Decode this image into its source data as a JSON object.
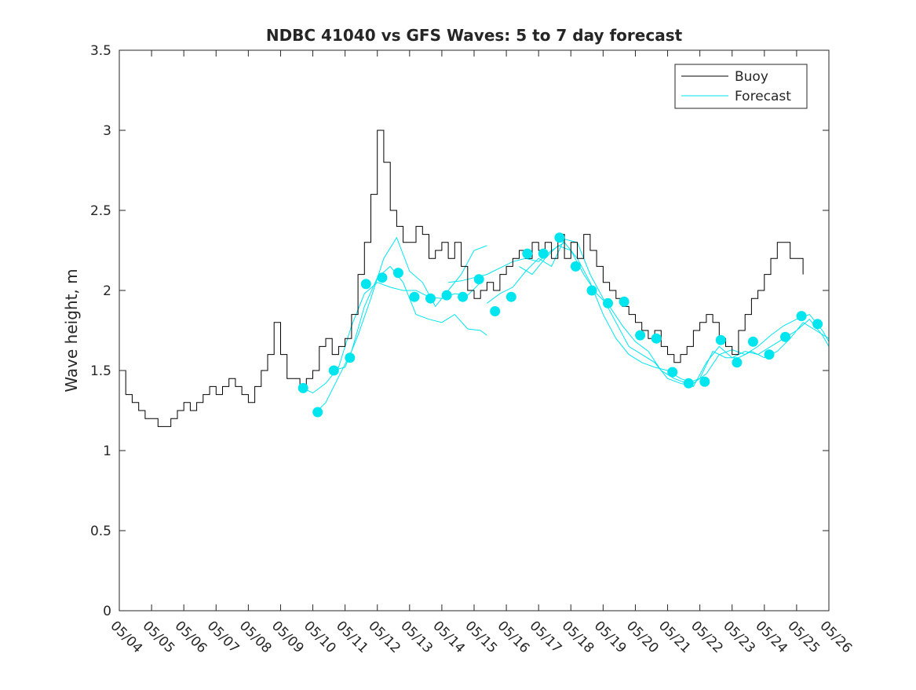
{
  "chart_data": {
    "type": "line",
    "title": "NDBC 41040 vs GFS Waves: 5 to 7 day forecast",
    "xlabel": "",
    "ylabel": "Wave height, m",
    "x_tick_labels": [
      "05/04",
      "05/05",
      "05/06",
      "05/07",
      "05/08",
      "05/09",
      "05/10",
      "05/11",
      "05/12",
      "05/13",
      "05/14",
      "05/15",
      "05/16",
      "05/17",
      "05/18",
      "05/19",
      "05/20",
      "05/21",
      "05/22",
      "05/23",
      "05/24",
      "05/25",
      "05/26"
    ],
    "xlim_days": [
      4,
      26
    ],
    "ylim": [
      0,
      3.5
    ],
    "y_ticks": [
      "0",
      "0.5",
      "1",
      "1.5",
      "2",
      "2.5",
      "3",
      "3.5"
    ],
    "grid": false,
    "legend": {
      "placement": "top-right",
      "entries": [
        "Buoy",
        "Forecast"
      ]
    },
    "colors": {
      "buoy": "#000000",
      "forecast": "#00e5ee",
      "markers": "#00e5ee",
      "axes": "#262626"
    },
    "series": [
      {
        "name": "Buoy",
        "style": "line",
        "x": [
          4.0,
          4.2,
          4.4,
          4.6,
          4.8,
          5.0,
          5.2,
          5.4,
          5.6,
          5.8,
          6.0,
          6.2,
          6.4,
          6.6,
          6.8,
          7.0,
          7.2,
          7.4,
          7.6,
          7.8,
          8.0,
          8.2,
          8.4,
          8.6,
          8.8,
          9.0,
          9.2,
          9.4,
          9.6,
          9.8,
          10.0,
          10.2,
          10.4,
          10.6,
          10.8,
          11.0,
          11.2,
          11.4,
          11.6,
          11.8,
          12.0,
          12.2,
          12.4,
          12.6,
          12.8,
          13.0,
          13.2,
          13.4,
          13.6,
          13.8,
          14.0,
          14.2,
          14.4,
          14.6,
          14.8,
          15.0,
          15.2,
          15.4,
          15.6,
          15.8,
          16.0,
          16.2,
          16.4,
          16.6,
          16.8,
          17.0,
          17.2,
          17.4,
          17.6,
          17.8,
          18.0,
          18.2,
          18.4,
          18.6,
          18.8,
          19.0,
          19.2,
          19.4,
          19.6,
          19.8,
          20.0,
          20.2,
          20.4,
          20.6,
          20.8,
          21.0,
          21.2,
          21.4,
          21.6,
          21.8,
          22.0,
          22.2,
          22.4,
          22.6,
          22.8,
          23.0,
          23.2,
          23.4,
          23.6,
          23.8,
          24.0,
          24.2,
          24.4,
          24.6,
          24.8,
          25.0,
          25.2
        ],
        "y": [
          1.5,
          1.35,
          1.3,
          1.25,
          1.2,
          1.2,
          1.15,
          1.15,
          1.2,
          1.25,
          1.3,
          1.25,
          1.3,
          1.35,
          1.4,
          1.35,
          1.4,
          1.45,
          1.4,
          1.35,
          1.3,
          1.4,
          1.5,
          1.6,
          1.8,
          1.6,
          1.45,
          1.45,
          1.4,
          1.45,
          1.5,
          1.65,
          1.7,
          1.6,
          1.65,
          1.7,
          1.85,
          2.1,
          2.3,
          2.6,
          3.0,
          2.8,
          2.5,
          2.4,
          2.3,
          2.3,
          2.4,
          2.35,
          2.2,
          2.25,
          2.3,
          2.2,
          2.3,
          2.15,
          2.0,
          1.95,
          2.0,
          2.05,
          2.0,
          2.1,
          2.15,
          2.2,
          2.25,
          2.2,
          2.3,
          2.25,
          2.3,
          2.2,
          2.35,
          2.2,
          2.3,
          2.2,
          2.35,
          2.25,
          2.15,
          2.05,
          2.0,
          1.95,
          1.9,
          1.85,
          1.8,
          1.75,
          1.7,
          1.75,
          1.65,
          1.6,
          1.55,
          1.6,
          1.65,
          1.75,
          1.8,
          1.85,
          1.8,
          1.7,
          1.65,
          1.6,
          1.75,
          1.85,
          1.95,
          2.0,
          2.1,
          2.2,
          2.3,
          2.3,
          2.2,
          2.2,
          2.1
        ]
      },
      {
        "name": "Forecast",
        "style": "line",
        "runs": [
          {
            "x": [
              9.7,
              10.0,
              10.4,
              10.8,
              11.2,
              11.6,
              12.0,
              12.4,
              12.8,
              13.2,
              13.6,
              14.0,
              14.4,
              14.8,
              15.2
            ],
            "y": [
              1.39,
              1.36,
              1.42,
              1.52,
              1.78,
              1.98,
              2.05,
              2.02,
              2.0,
              2.0,
              1.96,
              1.95,
              1.98,
              1.97,
              2.05
            ]
          },
          {
            "x": [
              10.1,
              10.4,
              10.8,
              11.2,
              11.6,
              12.0,
              12.4,
              12.8,
              13.2,
              13.6,
              14.0,
              14.4,
              14.8,
              15.2,
              15.4
            ],
            "y": [
              1.24,
              1.3,
              1.46,
              1.62,
              1.9,
              2.08,
              2.15,
              2.05,
              1.85,
              1.82,
              1.8,
              1.85,
              1.76,
              1.75,
              1.72
            ]
          },
          {
            "x": [
              10.6,
              11.0,
              11.4,
              11.8,
              12.2,
              12.6,
              13.0,
              13.4,
              13.8,
              14.2,
              14.6,
              15.0,
              15.4
            ],
            "y": [
              1.5,
              1.52,
              1.72,
              1.95,
              2.2,
              2.33,
              2.12,
              2.05,
              1.9,
              2.0,
              2.1,
              2.25,
              2.28
            ]
          },
          {
            "x": [
              14.2,
              14.6,
              15.0,
              15.4,
              15.8,
              16.2,
              16.6,
              17.0,
              17.4,
              17.8,
              18.2,
              18.6,
              19.0,
              19.4,
              19.8,
              20.2,
              20.6,
              21.0,
              21.4,
              21.8,
              22.2,
              22.6,
              23.0,
              23.4,
              23.8,
              24.2,
              24.6,
              25.0,
              25.4,
              25.8,
              26.0
            ],
            "y": [
              2.05,
              2.06,
              2.08,
              2.1,
              2.14,
              2.18,
              2.2,
              2.18,
              2.25,
              2.3,
              2.2,
              2.05,
              1.85,
              1.7,
              1.6,
              1.55,
              1.52,
              1.5,
              1.45,
              1.42,
              1.48,
              1.6,
              1.63,
              1.6,
              1.65,
              1.72,
              1.78,
              1.82,
              1.85,
              1.75,
              1.68
            ]
          },
          {
            "x": [
              15.4,
              15.8,
              16.2,
              16.6,
              17.0,
              17.4,
              17.8,
              18.2,
              18.6,
              19.0,
              19.4,
              19.8,
              20.2,
              20.6,
              21.0,
              21.4,
              21.8,
              22.2,
              22.6,
              23.0,
              23.4,
              23.8,
              24.2,
              24.6,
              25.0,
              25.4,
              25.8,
              26.0
            ],
            "y": [
              1.92,
              1.98,
              2.02,
              2.12,
              2.2,
              2.15,
              2.32,
              2.3,
              2.1,
              1.95,
              1.8,
              1.65,
              1.6,
              1.55,
              1.45,
              1.42,
              1.4,
              1.55,
              1.65,
              1.58,
              1.62,
              1.6,
              1.65,
              1.7,
              1.75,
              1.82,
              1.72,
              1.65
            ]
          },
          {
            "x": [
              16.4,
              16.8,
              17.2,
              17.6,
              18.0,
              18.4,
              18.8,
              19.2,
              19.6,
              20.0,
              20.4,
              20.8,
              21.2,
              21.6,
              22.0,
              22.4,
              22.8,
              23.2,
              23.6,
              24.0,
              24.4,
              24.8,
              25.2,
              25.6,
              26.0
            ],
            "y": [
              2.15,
              2.1,
              2.2,
              2.28,
              2.25,
              2.1,
              1.98,
              1.9,
              1.78,
              1.68,
              1.62,
              1.5,
              1.45,
              1.42,
              1.45,
              1.62,
              1.58,
              1.58,
              1.62,
              1.58,
              1.62,
              1.7,
              1.8,
              1.75,
              1.7
            ]
          }
        ]
      },
      {
        "name": "",
        "style": "markers",
        "x": [
          9.7,
          10.15,
          10.65,
          11.15,
          11.65,
          12.15,
          12.65,
          13.15,
          13.65,
          14.15,
          14.65,
          15.15,
          15.65,
          16.15,
          16.65,
          17.15,
          17.65,
          18.15,
          18.65,
          19.15,
          19.65,
          20.15,
          20.65,
          21.15,
          21.65,
          22.15,
          22.65,
          23.15,
          23.65,
          24.15,
          24.65,
          25.15,
          25.65
        ],
        "y": [
          1.39,
          1.24,
          1.5,
          1.58,
          2.04,
          2.08,
          2.11,
          1.96,
          1.95,
          1.97,
          1.96,
          2.07,
          1.87,
          1.96,
          2.23,
          2.23,
          2.33,
          2.15,
          2.0,
          1.92,
          1.93,
          1.72,
          1.7,
          1.49,
          1.42,
          1.43,
          1.69,
          1.55,
          1.68,
          1.6,
          1.71,
          1.84,
          1.79
        ]
      }
    ]
  }
}
